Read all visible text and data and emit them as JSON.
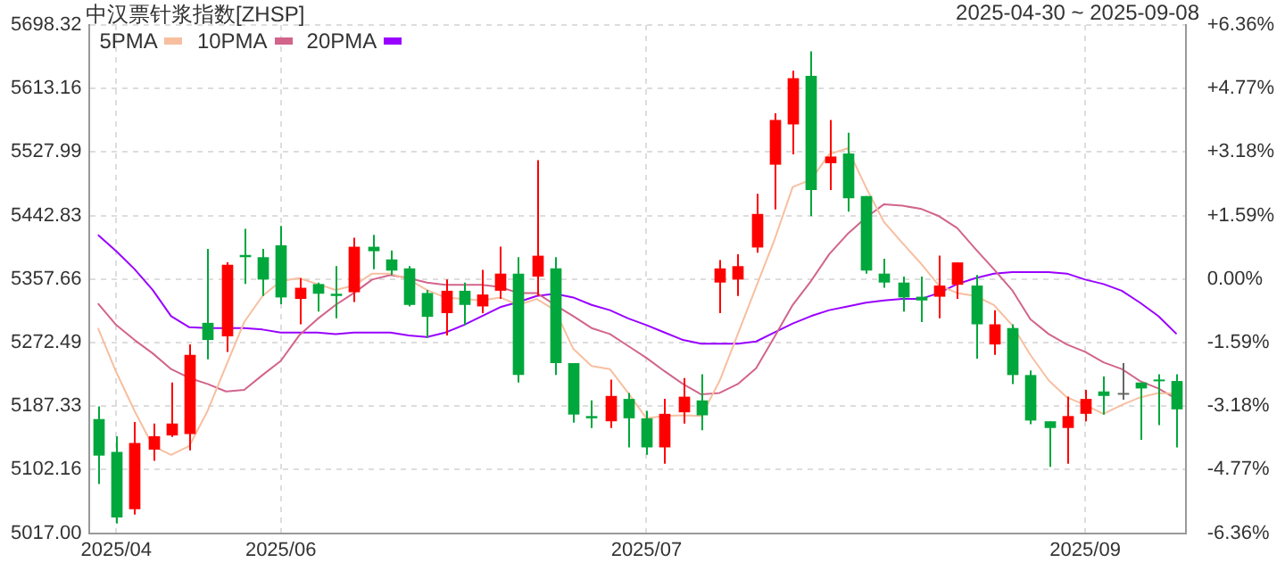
{
  "chart_data": {
    "type": "candlestick",
    "title": "中汉票针浆指数[ZHSP]",
    "subtitle": "2025-04-30 ~ 2025-09-08",
    "categories": [
      null,
      "2025/04",
      null,
      null,
      null,
      null,
      null,
      null,
      null,
      null,
      "2025/06",
      null,
      null,
      null,
      null,
      null,
      null,
      null,
      null,
      null,
      null,
      null,
      null,
      null,
      null,
      null,
      null,
      null,
      null,
      null,
      "2025/07",
      null,
      null,
      null,
      null,
      null,
      null,
      null,
      null,
      null,
      null,
      null,
      null,
      null,
      null,
      null,
      null,
      null,
      null,
      null,
      null,
      null,
      null,
      null,
      "2025/09",
      null,
      null,
      null,
      null,
      null
    ],
    "ohlc": [
      [
        5170,
        5187,
        5083,
        5121
      ],
      [
        5126,
        5147,
        5030,
        5038
      ],
      [
        5049,
        5166,
        5042,
        5138
      ],
      [
        5129,
        5164,
        5114,
        5147
      ],
      [
        5148,
        5219,
        5146,
        5164
      ],
      [
        5150,
        5270,
        5128,
        5256
      ],
      [
        5299,
        5398,
        5250,
        5276
      ],
      [
        5281,
        5380,
        5260,
        5377
      ],
      [
        5390,
        5425,
        5351,
        5387
      ],
      [
        5387,
        5398,
        5335,
        5357
      ],
      [
        5403,
        5429,
        5324,
        5333
      ],
      [
        5331,
        5359,
        5297,
        5346
      ],
      [
        5351,
        5353,
        5314,
        5338
      ],
      [
        5338,
        5375,
        5305,
        5335
      ],
      [
        5340,
        5413,
        5327,
        5401
      ],
      [
        5401,
        5417,
        5371,
        5395
      ],
      [
        5384,
        5396,
        5363,
        5369
      ],
      [
        5372,
        5375,
        5321,
        5323
      ],
      [
        5339,
        5343,
        5279,
        5307
      ],
      [
        5312,
        5357,
        5282,
        5342
      ],
      [
        5342,
        5353,
        5296,
        5323
      ],
      [
        5321,
        5370,
        5312,
        5337
      ],
      [
        5342,
        5401,
        5331,
        5365
      ],
      [
        5365,
        5387,
        5219,
        5229
      ],
      [
        5361,
        5517,
        5335,
        5389
      ],
      [
        5372,
        5387,
        5229,
        5245
      ],
      [
        5245,
        5245,
        5165,
        5176
      ],
      [
        5174,
        5195,
        5158,
        5171
      ],
      [
        5167,
        5223,
        5158,
        5201
      ],
      [
        5197,
        5205,
        5132,
        5171
      ],
      [
        5171,
        5181,
        5122,
        5132
      ],
      [
        5132,
        5197,
        5110,
        5177
      ],
      [
        5179,
        5225,
        5164,
        5200
      ],
      [
        5195,
        5230,
        5155,
        5175
      ],
      [
        5353,
        5383,
        5312,
        5372
      ],
      [
        5357,
        5391,
        5335,
        5375
      ],
      [
        5400,
        5472,
        5393,
        5445
      ],
      [
        5511,
        5580,
        5451,
        5571
      ],
      [
        5565,
        5637,
        5525,
        5627
      ],
      [
        5630,
        5663,
        5442,
        5477
      ],
      [
        5513,
        5571,
        5477,
        5522
      ],
      [
        5526,
        5554,
        5448,
        5466
      ],
      [
        5469,
        5469,
        5365,
        5369
      ],
      [
        5365,
        5385,
        5346,
        5353
      ],
      [
        5353,
        5361,
        5314,
        5333
      ],
      [
        5334,
        5361,
        5300,
        5329
      ],
      [
        5334,
        5389,
        5305,
        5349
      ],
      [
        5350,
        5380,
        5331,
        5380
      ],
      [
        5349,
        5363,
        5251,
        5297
      ],
      [
        5270,
        5316,
        5256,
        5297
      ],
      [
        5292,
        5297,
        5217,
        5229
      ],
      [
        5229,
        5235,
        5163,
        5168
      ],
      [
        5167,
        5167,
        5106,
        5158
      ],
      [
        5158,
        5200,
        5110,
        5174
      ],
      [
        5177,
        5209,
        5167,
        5197
      ],
      [
        5207,
        5227,
        5176,
        5201
      ],
      [
        5205,
        5245,
        5196,
        5205
      ],
      [
        5219,
        5219,
        5142,
        5211
      ],
      [
        5223,
        5230,
        5162,
        5221
      ],
      [
        5221,
        5230,
        5132,
        5183
      ]
    ],
    "colors": [
      "#00a73c",
      "#00a73c",
      "#ff0000",
      "#ff0000",
      "#ff0000",
      "#ff0000",
      "#00a73c",
      "#ff0000",
      "#00a73c",
      "#00a73c",
      "#00a73c",
      "#ff0000",
      "#00a73c",
      "#00a73c",
      "#ff0000",
      "#00a73c",
      "#00a73c",
      "#00a73c",
      "#00a73c",
      "#ff0000",
      "#00a73c",
      "#ff0000",
      "#ff0000",
      "#00a73c",
      "#ff0000",
      "#00a73c",
      "#00a73c",
      "#00a73c",
      "#ff0000",
      "#00a73c",
      "#00a73c",
      "#ff0000",
      "#ff0000",
      "#00a73c",
      "#ff0000",
      "#ff0000",
      "#ff0000",
      "#ff0000",
      "#ff0000",
      "#00a73c",
      "#ff0000",
      "#00a73c",
      "#00a73c",
      "#00a73c",
      "#00a73c",
      "#00a73c",
      "#ff0000",
      "#ff0000",
      "#00a73c",
      "#ff0000",
      "#00a73c",
      "#00a73c",
      "#00a73c",
      "#ff0000",
      "#ff0000",
      "#00a73c",
      "#666666",
      "#00a73c",
      "#00a73c",
      "#00a73c"
    ],
    "series": [
      {
        "name": "5PMA",
        "type": "line",
        "color": "#f7bfa0",
        "values": [
          5292,
          5233,
          5181,
          5134,
          5122,
          5134,
          5181,
          5241,
          5300,
          5335,
          5355,
          5359,
          5351,
          5343,
          5349,
          5365,
          5365,
          5357,
          5343,
          5333,
          5331,
          5329,
          5333,
          5323,
          5331,
          5316,
          5264,
          5241,
          5237,
          5205,
          5171,
          5174,
          5175,
          5174,
          5221,
          5284,
          5347,
          5410,
          5481,
          5491,
          5525,
          5533,
          5481,
          5434,
          5406,
          5379,
          5349,
          5339,
          5335,
          5323,
          5296,
          5256,
          5222,
          5199,
          5189,
          5177,
          5189,
          5199,
          5205,
          5204
        ]
      },
      {
        "name": "10PMA",
        "type": "line",
        "color": "#d2648c",
        "values": [
          5325,
          5296,
          5276,
          5258,
          5237,
          5225,
          5217,
          5207,
          5209,
          5229,
          5248,
          5282,
          5304,
          5323,
          5339,
          5357,
          5363,
          5359,
          5353,
          5350,
          5350,
          5350,
          5347,
          5339,
          5339,
          5323,
          5308,
          5292,
          5284,
          5268,
          5252,
          5234,
          5217,
          5203,
          5205,
          5217,
          5238,
          5280,
          5323,
          5355,
          5391,
          5418,
          5440,
          5458,
          5456,
          5452,
          5442,
          5426,
          5398,
          5371,
          5343,
          5304,
          5284,
          5270,
          5260,
          5246,
          5237,
          5221,
          5211,
          5197
        ]
      },
      {
        "name": "20PMA",
        "type": "line",
        "color": "#9900ff",
        "values": [
          5417,
          5395,
          5371,
          5343,
          5308,
          5293,
          5292,
          5292,
          5292,
          5290,
          5286,
          5286,
          5286,
          5284,
          5286,
          5286,
          5286,
          5282,
          5280,
          5286,
          5296,
          5308,
          5320,
          5327,
          5335,
          5338,
          5333,
          5323,
          5316,
          5305,
          5296,
          5286,
          5276,
          5271,
          5271,
          5271,
          5274,
          5286,
          5298,
          5308,
          5316,
          5321,
          5326,
          5329,
          5331,
          5331,
          5339,
          5351,
          5359,
          5365,
          5367,
          5367,
          5367,
          5365,
          5357,
          5351,
          5342,
          5326,
          5308,
          5284
        ]
      }
    ],
    "ylim": [
      5017,
      5698.32
    ],
    "yticks": [
      5698.32,
      5613.16,
      5527.99,
      5442.83,
      5357.66,
      5272.49,
      5187.33,
      5102.16,
      {
        "value": 5017,
        "label": "5017.00"
      }
    ],
    "y2lim": [
      -6.36,
      6.36
    ],
    "y2ticks": [
      {
        "value": 6.36,
        "label": "+6.36%"
      },
      {
        "value": 4.77,
        "label": "+4.77%"
      },
      {
        "value": 3.18,
        "label": "+3.18%"
      },
      {
        "value": 1.59,
        "label": "+1.59%"
      },
      {
        "value": 0,
        "label": "0.00%"
      },
      {
        "value": -1.59,
        "label": "-1.59%"
      },
      {
        "value": -3.18,
        "label": "-3.18%"
      },
      {
        "value": -4.77,
        "label": "-4.77%"
      },
      {
        "value": -6.36,
        "label": "-6.36%"
      }
    ],
    "grid": true,
    "legend": "top left"
  }
}
